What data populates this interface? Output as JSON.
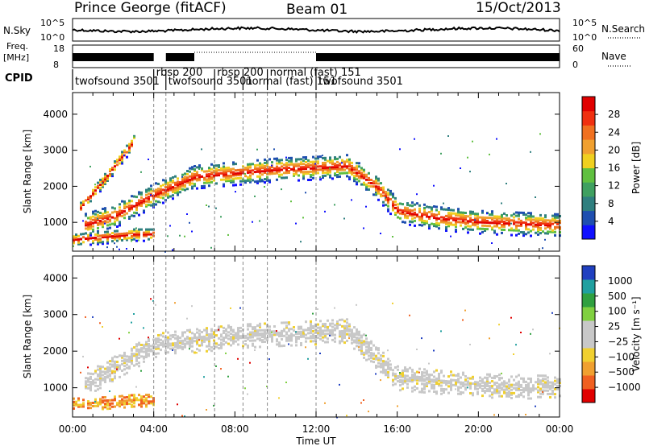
{
  "header": {
    "station": "Prince George (fitACF)",
    "beam": "Beam 01",
    "date": "15/Oct/2013"
  },
  "top_panels": {
    "nsky": {
      "label": "N.Sky",
      "ticks": [
        "10^5",
        "10^0"
      ]
    },
    "nsearch": {
      "label": "N.Search",
      "ticks": [
        "10^5",
        "10^0"
      ]
    },
    "freq": {
      "label_line1": "Freq.",
      "label_line2": "[MHz]",
      "ticks": [
        "18",
        "8"
      ]
    },
    "nave": {
      "label": "Nave",
      "ticks": [
        "60",
        "0"
      ]
    },
    "cpid": {
      "label": "CPID",
      "segments": [
        {
          "name": "twofsound 3501",
          "start_hour": 0.0
        },
        {
          "name": "rbsp 200",
          "start_hour": 4.0
        },
        {
          "name": "twofsound 3501",
          "start_hour": 4.6
        },
        {
          "name": "rbsp 200",
          "start_hour": 7.0
        },
        {
          "name": "normal (fast) 151",
          "start_hour": 8.4
        },
        {
          "name": "normal (fast) 151",
          "start_hour": 9.6
        },
        {
          "name": "twofsound 3501",
          "start_hour": 12.0
        }
      ]
    }
  },
  "chart_data": [
    {
      "type": "heatmap",
      "panel": "power",
      "xlabel": "",
      "ylabel": "Slant Range [km]",
      "xlim": [
        0,
        24
      ],
      "ylim": [
        200,
        4600
      ],
      "yticks": [
        1000,
        2000,
        3000,
        4000
      ],
      "colorbar": {
        "label": "Power [dB]",
        "ticks": [
          "4",
          "8",
          "12",
          "16",
          "20",
          "24",
          "28"
        ],
        "range": [
          0,
          30
        ],
        "colors": [
          "#1010ff",
          "#1f4fb0",
          "#2f7f7f",
          "#3fa060",
          "#60c040",
          "#f0d020",
          "#f0a030",
          "#f07020",
          "#f03010",
          "#e00000"
        ]
      },
      "features": [
        {
          "name": "main echo band",
          "hours": [
            0.5,
            2.0,
            4.0,
            6.0,
            8.0,
            10.0,
            12.0,
            13.5,
            15.0,
            16.0,
            18.0,
            20.0,
            22.0,
            24.0
          ],
          "range_km": [
            950,
            1200,
            1800,
            2300,
            2400,
            2500,
            2550,
            2600,
            2000,
            1350,
            1150,
            1050,
            1000,
            950
          ]
        },
        {
          "name": "near-range band",
          "hours": [
            0.0,
            1.0,
            2.0,
            3.0,
            4.0
          ],
          "range_km": [
            550,
            600,
            650,
            700,
            700
          ]
        },
        {
          "name": "slanted early band",
          "hours": [
            0.3,
            1.5,
            3.0
          ],
          "range_km": [
            1400,
            2200,
            3300
          ]
        }
      ]
    },
    {
      "type": "heatmap",
      "panel": "velocity",
      "xlabel": "Time UT",
      "ylabel": "Slant Range [km]",
      "xlim": [
        0,
        24
      ],
      "ylim": [
        200,
        4600
      ],
      "xticks": [
        "00:00",
        "04:00",
        "08:00",
        "12:00",
        "16:00",
        "20:00",
        "00:00"
      ],
      "yticks": [
        1000,
        2000,
        3000,
        4000
      ],
      "colorbar": {
        "label": "Velocity [m s⁻¹]",
        "ticks": [
          "1000",
          "500",
          "100",
          "25",
          "−25",
          "−100",
          "−500",
          "−1000"
        ],
        "colors": [
          "#2040c0",
          "#20a0a0",
          "#30a040",
          "#80d040",
          "#c8c8c8",
          "#c8c8c8",
          "#f0d030",
          "#f0a030",
          "#f06020",
          "#e00000"
        ]
      },
      "features": [
        {
          "name": "ground scatter band",
          "hours": [
            0.5,
            4.0,
            8.0,
            12.0,
            13.5,
            16.0,
            20.0,
            24.0
          ],
          "range_km": [
            1100,
            2200,
            2450,
            2550,
            2600,
            1300,
            1100,
            1050
          ]
        },
        {
          "name": "near-range negative velocity",
          "hours": [
            0.0,
            1.0,
            2.0,
            3.0,
            4.0
          ],
          "range_km": [
            600,
            620,
            650,
            700,
            700
          ]
        }
      ]
    }
  ]
}
